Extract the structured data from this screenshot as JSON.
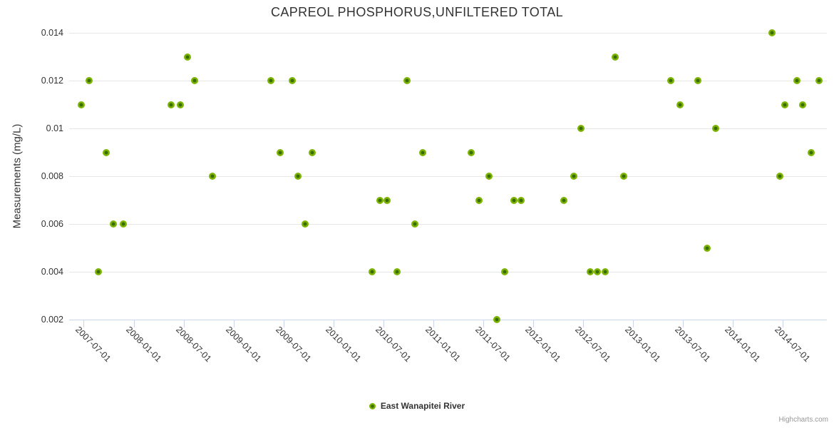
{
  "chart": {
    "title": "CAPREOL PHOSPHORUS,UNFILTERED TOTAL",
    "y_axis_title": "Measurements (mg/L)",
    "legend_label": "East Wanapitei River",
    "credits": "Highcharts.com"
  },
  "chart_data": {
    "type": "scatter",
    "title": "CAPREOL PHOSPHORUS,UNFILTERED TOTAL",
    "xlabel": "",
    "ylabel": "Measurements (mg/L)",
    "grid": "horizontal-only",
    "legend_position": "bottom-center",
    "colors": {
      "marker_fill": "#7db402",
      "marker_center": "#396d04",
      "gridline": "#e6e6e6",
      "axis_line": "#ccd6eb",
      "label_text": "#333333",
      "credits_text": "#999999"
    },
    "ylim": [
      0.002,
      0.014
    ],
    "xlim": [
      "2007-05-09",
      "2014-12-10"
    ],
    "y_ticks": [
      {
        "label": "0.014",
        "value": 0.014
      },
      {
        "label": "0.012",
        "value": 0.012
      },
      {
        "label": "0.01",
        "value": 0.01
      },
      {
        "label": "0.008",
        "value": 0.008
      },
      {
        "label": "0.006",
        "value": 0.006
      },
      {
        "label": "0.004",
        "value": 0.004
      },
      {
        "label": "0.002",
        "value": 0.002
      }
    ],
    "x_ticks": [
      "2007-07-01",
      "2008-01-01",
      "2008-07-01",
      "2009-01-01",
      "2009-07-01",
      "2010-01-01",
      "2010-07-01",
      "2011-01-01",
      "2011-07-01",
      "2012-01-01",
      "2012-07-01",
      "2013-01-01",
      "2013-07-01",
      "2014-01-01",
      "2014-07-01"
    ],
    "series": [
      {
        "name": "East Wanapitei River",
        "points": [
          [
            "2007-06-22",
            0.011
          ],
          [
            "2007-07-21",
            0.012
          ],
          [
            "2007-08-24",
            0.004
          ],
          [
            "2007-09-22",
            0.009
          ],
          [
            "2007-10-18",
            0.006
          ],
          [
            "2007-11-22",
            0.006
          ],
          [
            "2008-05-16",
            0.011
          ],
          [
            "2008-06-18",
            0.011
          ],
          [
            "2008-07-16",
            0.013
          ],
          [
            "2008-08-09",
            0.012
          ],
          [
            "2008-10-15",
            0.008
          ],
          [
            "2009-05-16",
            0.012
          ],
          [
            "2009-06-20",
            0.009
          ],
          [
            "2009-08-01",
            0.012
          ],
          [
            "2009-08-24",
            0.008
          ],
          [
            "2009-09-17",
            0.006
          ],
          [
            "2009-10-15",
            0.009
          ],
          [
            "2010-05-20",
            0.004
          ],
          [
            "2010-06-18",
            0.007
          ],
          [
            "2010-07-16",
            0.007
          ],
          [
            "2010-08-20",
            0.004
          ],
          [
            "2010-09-26",
            0.012
          ],
          [
            "2010-10-24",
            0.006
          ],
          [
            "2010-11-23",
            0.009
          ],
          [
            "2011-05-18",
            0.009
          ],
          [
            "2011-06-17",
            0.007
          ],
          [
            "2011-07-23",
            0.008
          ],
          [
            "2011-08-20",
            0.002
          ],
          [
            "2011-09-18",
            0.004
          ],
          [
            "2011-10-23",
            0.007
          ],
          [
            "2011-11-17",
            0.007
          ],
          [
            "2012-04-22",
            0.007
          ],
          [
            "2012-05-28",
            0.008
          ],
          [
            "2012-06-23",
            0.01
          ],
          [
            "2012-07-28",
            0.004
          ],
          [
            "2012-08-23",
            0.004
          ],
          [
            "2012-09-21",
            0.004
          ],
          [
            "2012-10-26",
            0.013
          ],
          [
            "2012-11-27",
            0.008
          ],
          [
            "2013-05-17",
            0.012
          ],
          [
            "2013-06-22",
            0.011
          ],
          [
            "2013-08-25",
            0.012
          ],
          [
            "2013-09-27",
            0.005
          ],
          [
            "2013-10-30",
            0.01
          ],
          [
            "2014-05-22",
            0.014
          ],
          [
            "2014-06-21",
            0.008
          ],
          [
            "2014-07-09",
            0.011
          ],
          [
            "2014-08-23",
            0.012
          ],
          [
            "2014-09-12",
            0.011
          ],
          [
            "2014-10-13",
            0.009
          ],
          [
            "2014-11-11",
            0.012
          ]
        ]
      }
    ]
  }
}
